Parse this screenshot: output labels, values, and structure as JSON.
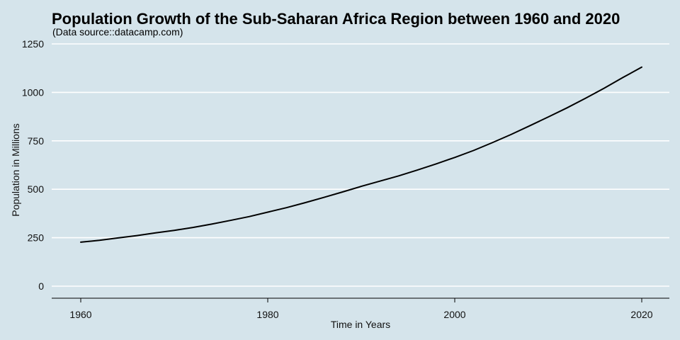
{
  "chart_data": {
    "type": "line",
    "title": "Population Growth of the Sub-Saharan Africa Region between 1960 and 2020",
    "subtitle": "(Data source::datacamp.com)",
    "xlabel": "Time in Years",
    "ylabel": "Population in Millions",
    "xlim": [
      1960,
      2020
    ],
    "ylim": [
      0,
      1250
    ],
    "x_ticks": [
      1960,
      1980,
      2000,
      2020
    ],
    "y_ticks": [
      0,
      250,
      500,
      750,
      1000,
      1250
    ],
    "grid": "horizontal",
    "legend": "none",
    "colors": {
      "background": "#d5e4eb",
      "line": "#000000",
      "grid": "#ffffff",
      "axis": "#000000"
    },
    "series": [
      {
        "x": [
          1960,
          1962,
          1964,
          1966,
          1968,
          1970,
          1972,
          1974,
          1976,
          1978,
          1980,
          1982,
          1984,
          1986,
          1988,
          1990,
          1992,
          1994,
          1996,
          1998,
          2000,
          2002,
          2004,
          2006,
          2008,
          2010,
          2012,
          2014,
          2016,
          2018,
          2020
        ],
        "values": [
          227,
          237,
          249,
          261,
          275,
          288,
          303,
          320,
          339,
          359,
          382,
          405,
          431,
          458,
          486,
          515,
          542,
          569,
          599,
          631,
          664,
          700,
          740,
          782,
          827,
          873,
          920,
          970,
          1022,
          1077,
          1130
        ]
      }
    ]
  }
}
